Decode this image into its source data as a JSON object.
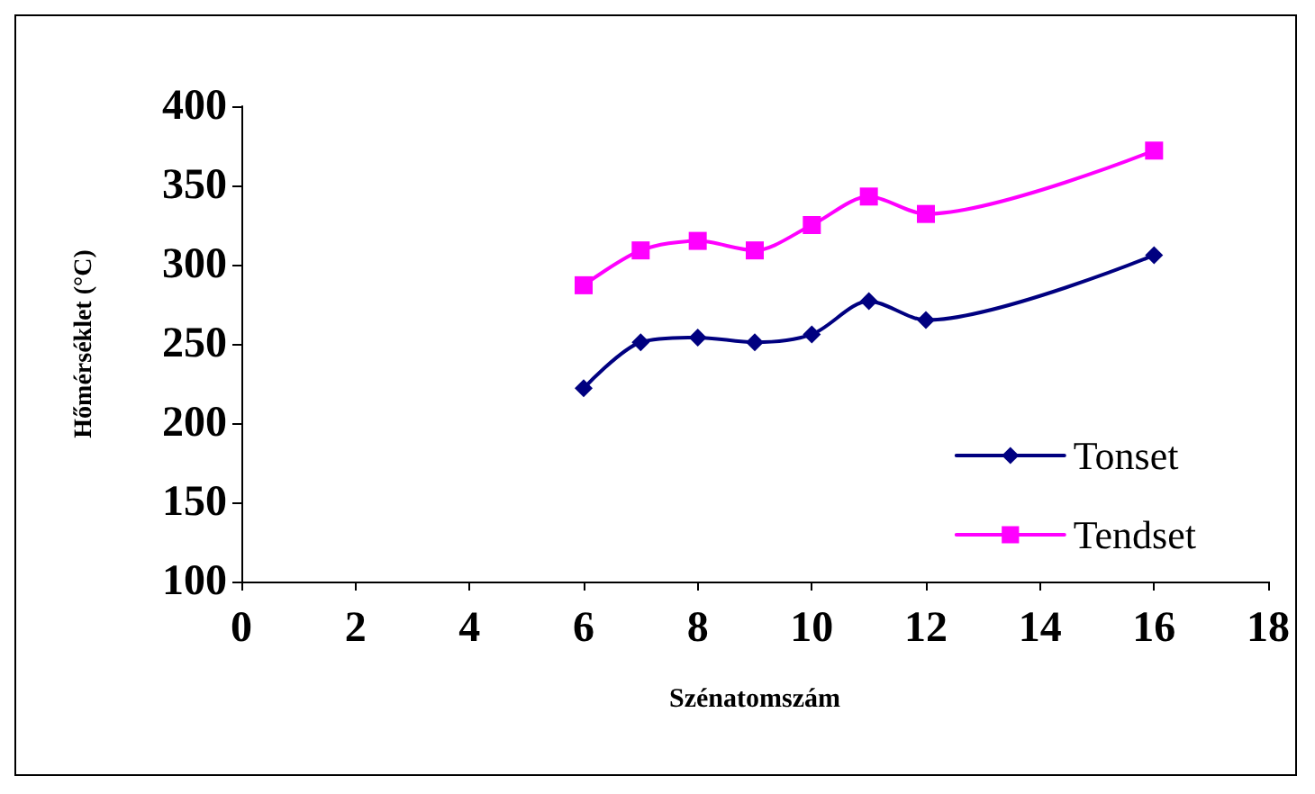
{
  "chart_data": {
    "type": "line",
    "xlabel": "Szénatomszám",
    "ylabel": "Hőmérséklet (°C)",
    "x": [
      6,
      7,
      8,
      9,
      10,
      11,
      12,
      16
    ],
    "series": [
      {
        "name": "Tonset",
        "color": "#000080",
        "marker": "diamond",
        "values": [
          222,
          251,
          254,
          251,
          256,
          277,
          265,
          306
        ]
      },
      {
        "name": "Tendset",
        "color": "#ff00ff",
        "marker": "square",
        "values": [
          287,
          309,
          315,
          309,
          325,
          343,
          332,
          372
        ]
      }
    ],
    "xlim": [
      0,
      18
    ],
    "xticks": [
      0,
      2,
      4,
      6,
      8,
      10,
      12,
      14,
      16,
      18
    ],
    "ylim": [
      100,
      400
    ],
    "yticks": [
      100,
      150,
      200,
      250,
      300,
      350,
      400
    ],
    "grid": false,
    "legend": "bottom right",
    "line_style": "solid"
  }
}
